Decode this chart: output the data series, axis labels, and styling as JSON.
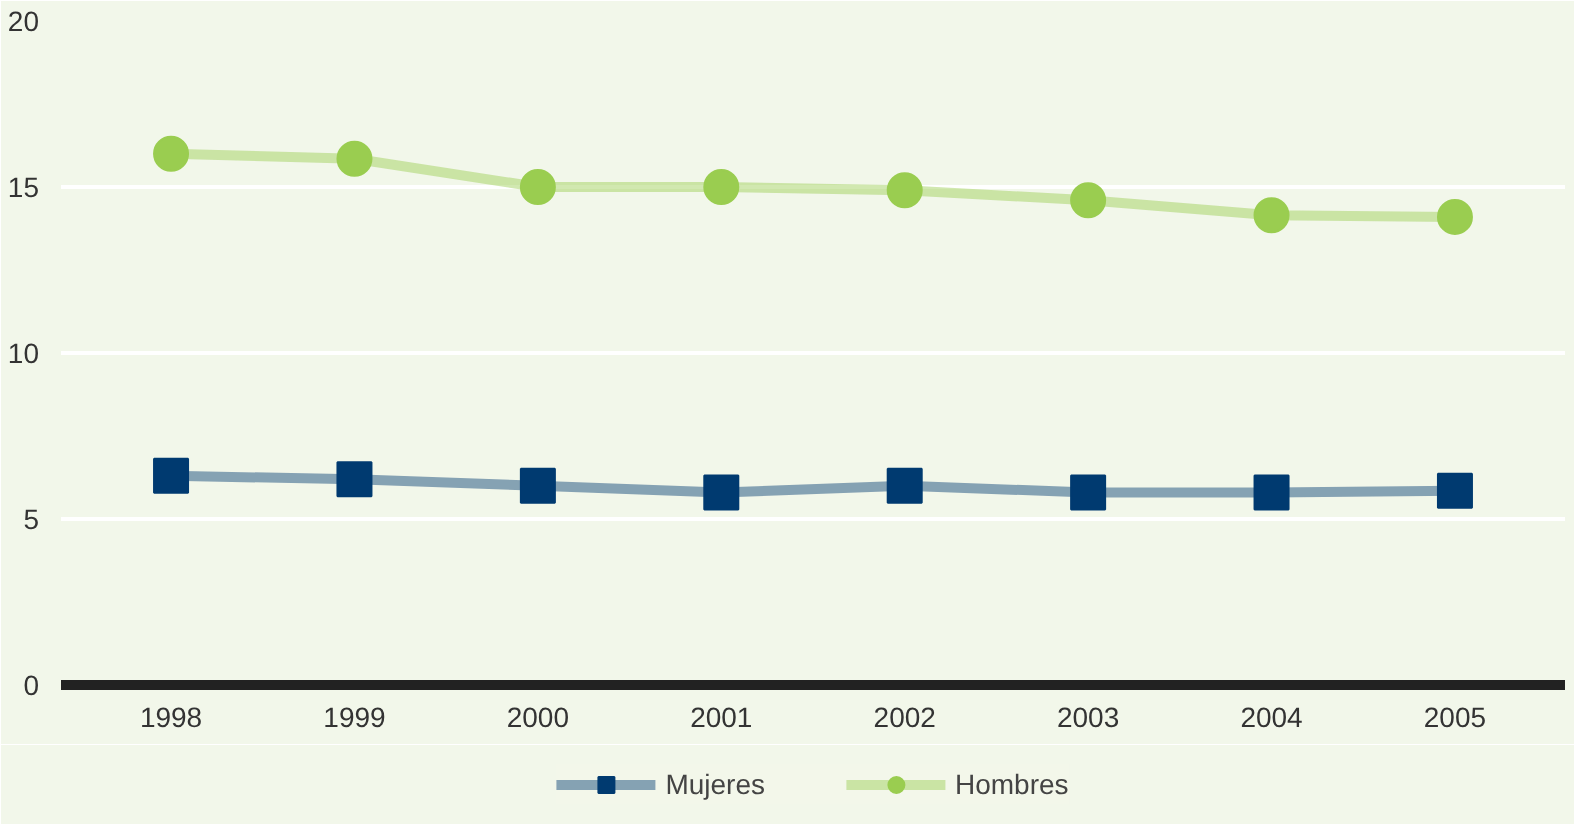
{
  "chart_data": {
    "type": "line",
    "categories": [
      "1998",
      "1999",
      "2000",
      "2001",
      "2002",
      "2003",
      "2004",
      "2005"
    ],
    "series": [
      {
        "name": "Mujeres",
        "color": "#003a70",
        "marker": "square",
        "values": [
          6.3,
          6.2,
          6.0,
          5.8,
          6.0,
          5.8,
          5.8,
          5.85
        ]
      },
      {
        "name": "Hombres",
        "color": "#9acd50",
        "marker": "circle",
        "values": [
          16.0,
          15.85,
          15.0,
          15.0,
          14.9,
          14.6,
          14.15,
          14.1
        ]
      }
    ],
    "ylim": [
      0,
      20
    ],
    "yticks": [
      0,
      5,
      10,
      15,
      20
    ],
    "grid": "y",
    "legend": "bottom"
  }
}
